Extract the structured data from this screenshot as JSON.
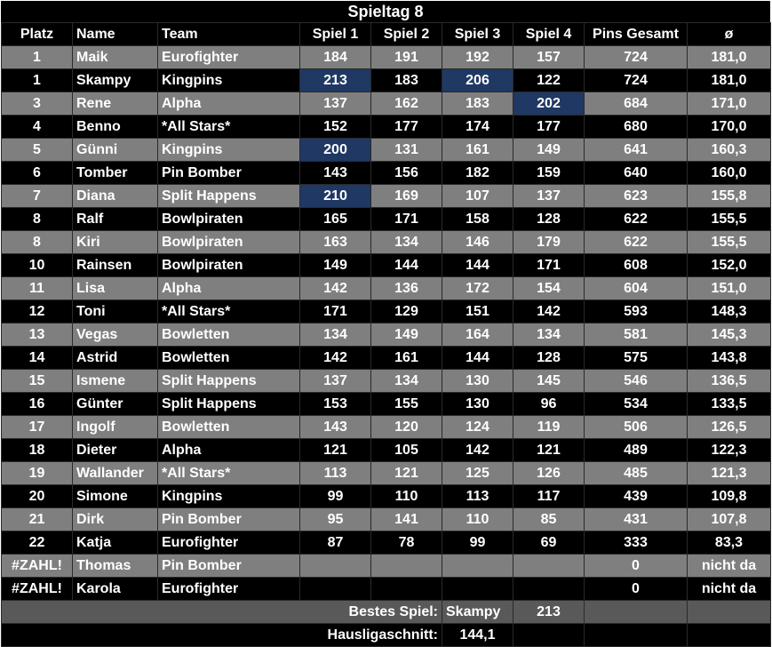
{
  "title": "Spieltag 8",
  "headers": [
    "Platz",
    "Name",
    "Team",
    "Spiel 1",
    "Spiel 2",
    "Spiel 3",
    "Spiel 4",
    "Pins Gesamt",
    "ø"
  ],
  "rows": [
    {
      "platz": "1",
      "name": "Maik",
      "team": "Eurofighter",
      "s1": "184",
      "s2": "191",
      "s3": "192",
      "s4": "157",
      "gesamt": "724",
      "avg": "181,0",
      "best": []
    },
    {
      "platz": "1",
      "name": "Skampy",
      "team": "Kingpins",
      "s1": "213",
      "s2": "183",
      "s3": "206",
      "s4": "122",
      "gesamt": "724",
      "avg": "181,0",
      "best": [
        "s1",
        "s3"
      ]
    },
    {
      "platz": "3",
      "name": "Rene",
      "team": "Alpha",
      "s1": "137",
      "s2": "162",
      "s3": "183",
      "s4": "202",
      "gesamt": "684",
      "avg": "171,0",
      "best": [
        "s4"
      ]
    },
    {
      "platz": "4",
      "name": "Benno",
      "team": "*All Stars*",
      "s1": "152",
      "s2": "177",
      "s3": "174",
      "s4": "177",
      "gesamt": "680",
      "avg": "170,0",
      "best": []
    },
    {
      "platz": "5",
      "name": "Günni",
      "team": "Kingpins",
      "s1": "200",
      "s2": "131",
      "s3": "161",
      "s4": "149",
      "gesamt": "641",
      "avg": "160,3",
      "best": [
        "s1"
      ]
    },
    {
      "platz": "6",
      "name": "Tomber",
      "team": "Pin Bomber",
      "s1": "143",
      "s2": "156",
      "s3": "182",
      "s4": "159",
      "gesamt": "640",
      "avg": "160,0",
      "best": []
    },
    {
      "platz": "7",
      "name": "Diana",
      "team": "Split Happens",
      "s1": "210",
      "s2": "169",
      "s3": "107",
      "s4": "137",
      "gesamt": "623",
      "avg": "155,8",
      "best": [
        "s1"
      ]
    },
    {
      "platz": "8",
      "name": "Ralf",
      "team": "Bowlpiraten",
      "s1": "165",
      "s2": "171",
      "s3": "158",
      "s4": "128",
      "gesamt": "622",
      "avg": "155,5",
      "best": []
    },
    {
      "platz": "8",
      "name": "Kiri",
      "team": "Bowlpiraten",
      "s1": "163",
      "s2": "134",
      "s3": "146",
      "s4": "179",
      "gesamt": "622",
      "avg": "155,5",
      "best": []
    },
    {
      "platz": "10",
      "name": "Rainsen",
      "team": "Bowlpiraten",
      "s1": "149",
      "s2": "144",
      "s3": "144",
      "s4": "171",
      "gesamt": "608",
      "avg": "152,0",
      "best": []
    },
    {
      "platz": "11",
      "name": "Lisa",
      "team": "Alpha",
      "s1": "142",
      "s2": "136",
      "s3": "172",
      "s4": "154",
      "gesamt": "604",
      "avg": "151,0",
      "best": []
    },
    {
      "platz": "12",
      "name": "Toni",
      "team": "*All Stars*",
      "s1": "171",
      "s2": "129",
      "s3": "151",
      "s4": "142",
      "gesamt": "593",
      "avg": "148,3",
      "best": []
    },
    {
      "platz": "13",
      "name": "Vegas",
      "team": "Bowletten",
      "s1": "134",
      "s2": "149",
      "s3": "164",
      "s4": "134",
      "gesamt": "581",
      "avg": "145,3",
      "best": []
    },
    {
      "platz": "14",
      "name": "Astrid",
      "team": "Bowletten",
      "s1": "142",
      "s2": "161",
      "s3": "144",
      "s4": "128",
      "gesamt": "575",
      "avg": "143,8",
      "best": []
    },
    {
      "platz": "15",
      "name": "Ismene",
      "team": "Split Happens",
      "s1": "137",
      "s2": "134",
      "s3": "130",
      "s4": "145",
      "gesamt": "546",
      "avg": "136,5",
      "best": []
    },
    {
      "platz": "16",
      "name": "Günter",
      "team": "Split Happens",
      "s1": "153",
      "s2": "155",
      "s3": "130",
      "s4": "96",
      "gesamt": "534",
      "avg": "133,5",
      "best": []
    },
    {
      "platz": "17",
      "name": "Ingolf",
      "team": "Bowletten",
      "s1": "143",
      "s2": "120",
      "s3": "124",
      "s4": "119",
      "gesamt": "506",
      "avg": "126,5",
      "best": []
    },
    {
      "platz": "18",
      "name": "Dieter",
      "team": "Alpha",
      "s1": "121",
      "s2": "105",
      "s3": "142",
      "s4": "121",
      "gesamt": "489",
      "avg": "122,3",
      "best": []
    },
    {
      "platz": "19",
      "name": "Wallander",
      "team": "*All Stars*",
      "s1": "113",
      "s2": "121",
      "s3": "125",
      "s4": "126",
      "gesamt": "485",
      "avg": "121,3",
      "best": []
    },
    {
      "platz": "20",
      "name": "Simone",
      "team": "Kingpins",
      "s1": "99",
      "s2": "110",
      "s3": "113",
      "s4": "117",
      "gesamt": "439",
      "avg": "109,8",
      "best": []
    },
    {
      "platz": "21",
      "name": "Dirk",
      "team": "Pin Bomber",
      "s1": "95",
      "s2": "141",
      "s3": "110",
      "s4": "85",
      "gesamt": "431",
      "avg": "107,8",
      "best": []
    },
    {
      "platz": "22",
      "name": "Katja",
      "team": "Eurofighter",
      "s1": "87",
      "s2": "78",
      "s3": "99",
      "s4": "69",
      "gesamt": "333",
      "avg": "83,3",
      "best": []
    },
    {
      "platz": "#ZAHL!",
      "name": "Thomas",
      "team": "Pin Bomber",
      "s1": "",
      "s2": "",
      "s3": "",
      "s4": "",
      "gesamt": "0",
      "avg": "nicht da",
      "best": []
    },
    {
      "platz": "#ZAHL!",
      "name": "Karola",
      "team": "Eurofighter",
      "s1": "",
      "s2": "",
      "s3": "",
      "s4": "",
      "gesamt": "0",
      "avg": "nicht da",
      "best": []
    }
  ],
  "footer": {
    "best_label": "Bestes Spiel:",
    "best_name": "Skampy",
    "best_value": "213",
    "avg_label": "Hausligaschnitt:",
    "avg_value": "144,1"
  },
  "colors": {
    "light_row": "#7f7f7f",
    "dark_row": "#000000",
    "highlight": "#1f3864"
  }
}
